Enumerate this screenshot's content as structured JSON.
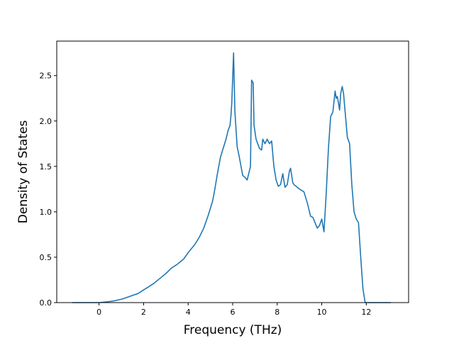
{
  "chart_data": {
    "type": "line",
    "title": "",
    "xlabel": "Frequency (THz)",
    "ylabel": "Density of States",
    "xlim": [
      -1.9,
      13.9
    ],
    "ylim": [
      0.0,
      2.88
    ],
    "grid": false,
    "line_color": "#1f77b4",
    "xticks": [
      0,
      2,
      4,
      6,
      8,
      10,
      12
    ],
    "xtick_labels": [
      "0",
      "2",
      "4",
      "6",
      "8",
      "10",
      "12"
    ],
    "yticks": [
      0.0,
      0.5,
      1.0,
      1.5,
      2.0,
      2.5
    ],
    "ytick_labels": [
      "0.0",
      "0.5",
      "1.0",
      "1.5",
      "2.0",
      "2.5"
    ],
    "series": [
      {
        "x": [
          -1.21,
          0.0,
          0.35,
          0.7,
          1.05,
          1.4,
          1.75,
          2.0,
          2.2,
          2.45,
          2.7,
          3.0,
          3.25,
          3.5,
          3.8,
          4.0,
          4.3,
          4.5,
          4.7,
          4.9,
          5.1,
          5.2,
          5.3,
          5.45,
          5.55,
          5.7,
          5.8,
          5.88,
          5.92,
          5.96,
          6.04,
          6.1,
          6.2,
          6.3,
          6.45,
          6.55,
          6.65,
          6.8,
          6.85,
          6.92,
          6.96,
          7.05,
          7.2,
          7.3,
          7.35,
          7.45,
          7.55,
          7.65,
          7.75,
          7.85,
          7.95,
          8.05,
          8.15,
          8.25,
          8.35,
          8.45,
          8.55,
          8.6,
          8.7,
          8.75,
          8.85,
          9.0,
          9.2,
          9.35,
          9.5,
          9.6,
          9.8,
          9.9,
          10.0,
          10.1,
          10.2,
          10.3,
          10.4,
          10.5,
          10.6,
          10.65,
          10.7,
          10.75,
          10.8,
          10.85,
          10.92,
          10.98,
          11.05,
          11.15,
          11.25,
          11.35,
          11.45,
          11.55,
          11.65,
          11.75,
          11.85,
          11.95,
          12.1,
          13.1
        ],
        "y": [
          0.0,
          0.0,
          0.008,
          0.02,
          0.04,
          0.07,
          0.1,
          0.14,
          0.17,
          0.21,
          0.26,
          0.32,
          0.38,
          0.42,
          0.48,
          0.55,
          0.64,
          0.72,
          0.82,
          0.96,
          1.12,
          1.25,
          1.4,
          1.6,
          1.68,
          1.8,
          1.9,
          1.95,
          2.05,
          2.2,
          2.75,
          2.1,
          1.72,
          1.6,
          1.4,
          1.38,
          1.35,
          1.5,
          2.45,
          2.42,
          1.95,
          1.8,
          1.7,
          1.68,
          1.8,
          1.75,
          1.8,
          1.75,
          1.78,
          1.5,
          1.35,
          1.28,
          1.3,
          1.42,
          1.27,
          1.3,
          1.45,
          1.48,
          1.32,
          1.3,
          1.28,
          1.25,
          1.22,
          1.1,
          0.95,
          0.94,
          0.82,
          0.85,
          0.92,
          0.78,
          1.2,
          1.7,
          2.05,
          2.1,
          2.33,
          2.25,
          2.27,
          2.2,
          2.12,
          2.3,
          2.38,
          2.3,
          2.1,
          1.82,
          1.75,
          1.3,
          1.0,
          0.92,
          0.88,
          0.5,
          0.15,
          0.0,
          0.0,
          0.0
        ]
      }
    ]
  }
}
